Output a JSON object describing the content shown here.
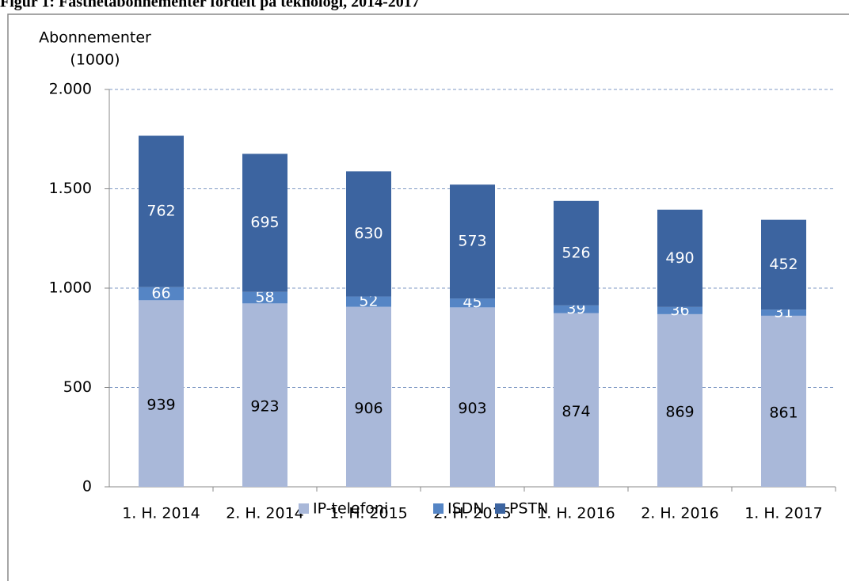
{
  "chart_data": {
    "type": "stacked_bar",
    "title": "Figur 1: Fastnetabonnementer fordelt på teknologi, 2014-2017",
    "y_label": [
      "Abonnementer",
      "(1000)"
    ],
    "categories": [
      "1. H. 2014",
      "2. H. 2014",
      "1. H. 2015",
      "2. H. 2015",
      "1. H. 2016",
      "2. H. 2016",
      "1. H. 2017"
    ],
    "series": [
      {
        "name": "IP-telefoni",
        "color": "#a9b8d9",
        "values": [
          939,
          923,
          906,
          903,
          874,
          869,
          861
        ]
      },
      {
        "name": "ISDN",
        "color": "#5585c5",
        "values": [
          66,
          58,
          52,
          45,
          39,
          36,
          31
        ]
      },
      {
        "name": "PSTN",
        "color": "#3c64a0",
        "values": [
          762,
          695,
          630,
          573,
          526,
          490,
          452
        ]
      }
    ],
    "ylim": [
      0,
      2000
    ],
    "yticks": [
      0,
      500,
      {
        "value": 1000,
        "label": "1.000"
      },
      {
        "value": 1500,
        "label": "1.500"
      },
      {
        "value": 2000,
        "label": "2.000"
      }
    ],
    "grid": true,
    "legend": "bottom"
  }
}
